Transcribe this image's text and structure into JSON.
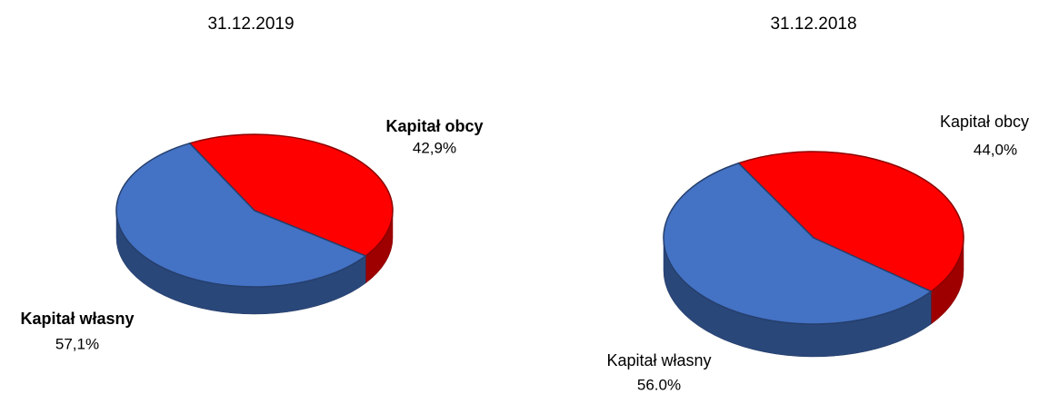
{
  "chart_data": [
    {
      "type": "pie",
      "title": "31.12.2019",
      "categories": [
        "Kapitał własny",
        "Kapitał obcy"
      ],
      "values": [
        57.1,
        42.9
      ],
      "value_labels": [
        "57,1%",
        "42,9%"
      ],
      "colors": [
        "#4472c4",
        "#ff0000"
      ]
    },
    {
      "type": "pie",
      "title": "31.12.2018",
      "categories": [
        "Kapitał własny",
        "Kapitał obcy"
      ],
      "values": [
        56.0,
        44.0
      ],
      "value_labels": [
        "56.0%",
        "44,0%"
      ],
      "colors": [
        "#4472c4",
        "#ff0000"
      ]
    }
  ]
}
